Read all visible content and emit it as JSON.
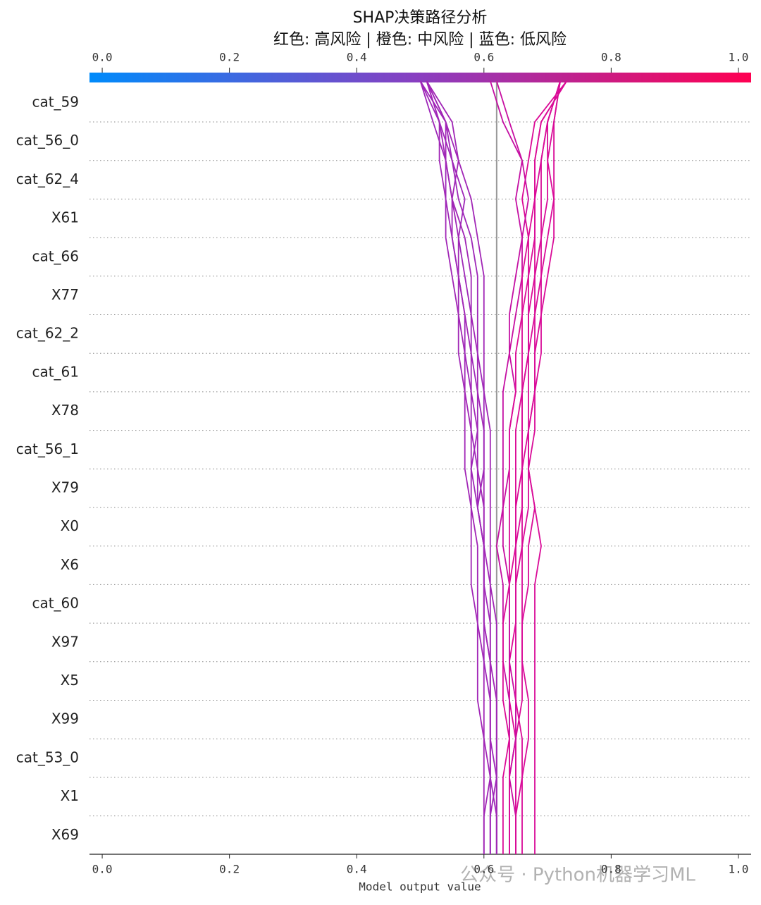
{
  "chart_data": {
    "type": "decision",
    "title": "SHAP决策路径分析",
    "subtitle": "红色: 高风险 | 橙色: 中风险 | 蓝色: 低风险",
    "x_label": "Model output value",
    "watermark": "公众号 · Python机器学习ML",
    "features": [
      "cat_59",
      "cat_56_0",
      "cat_62_4",
      "X61",
      "cat_66",
      "X77",
      "cat_62_2",
      "cat_61",
      "X78",
      "cat_56_1",
      "X79",
      "X0",
      "X6",
      "cat_60",
      "X97",
      "X5",
      "X99",
      "cat_53_0",
      "X1",
      "X69"
    ],
    "xlim": [
      -0.02,
      1.02
    ],
    "xticks": [
      {
        "value": 0,
        "label": "0.0"
      },
      0.2,
      0.4,
      0.6,
      0.8,
      {
        "value": 1,
        "label": "1.0"
      }
    ],
    "base_value": 0.62,
    "base_color": "#999999",
    "colorbar_colors": [
      "#008bfb",
      "#8a3ec0",
      "#ff0052"
    ],
    "lines": [
      {
        "color": "#a126b6",
        "values": [
          0.51,
          0.53,
          0.54,
          0.55,
          0.55,
          0.56,
          0.56,
          0.57,
          0.57,
          0.58,
          0.58,
          0.58,
          0.59,
          0.59,
          0.59,
          0.6,
          0.6,
          0.6,
          0.61,
          0.61,
          0.61
        ]
      },
      {
        "color": "#9e27b8",
        "values": [
          0.5,
          0.54,
          0.55,
          0.57,
          0.56,
          0.57,
          0.58,
          0.58,
          0.59,
          0.59,
          0.58,
          0.59,
          0.6,
          0.6,
          0.6,
          0.61,
          0.61,
          0.61,
          0.61,
          0.62,
          0.62
        ]
      },
      {
        "color": "#a126b6",
        "values": [
          0.51,
          0.55,
          0.56,
          0.55,
          0.57,
          0.58,
          0.58,
          0.59,
          0.59,
          0.6,
          0.6,
          0.6,
          0.6,
          0.61,
          0.61,
          0.61,
          0.62,
          0.62,
          0.62,
          0.62,
          0.62
        ]
      },
      {
        "color": "#a126b6",
        "values": [
          0.51,
          0.53,
          0.53,
          0.54,
          0.54,
          0.55,
          0.56,
          0.56,
          0.57,
          0.57,
          0.57,
          0.58,
          0.58,
          0.58,
          0.59,
          0.59,
          0.59,
          0.6,
          0.6,
          0.6,
          0.6
        ]
      },
      {
        "color": "#9e27b8",
        "values": [
          0.5,
          0.52,
          0.54,
          0.54,
          0.55,
          0.56,
          0.57,
          0.57,
          0.58,
          0.58,
          0.59,
          0.59,
          0.6,
          0.6,
          0.6,
          0.6,
          0.61,
          0.61,
          0.61,
          0.61,
          0.61
        ]
      },
      {
        "color": "#a126b6",
        "values": [
          0.51,
          0.54,
          0.56,
          0.58,
          0.59,
          0.6,
          0.6,
          0.6,
          0.6,
          0.61,
          0.61,
          0.61,
          0.61,
          0.61,
          0.62,
          0.62,
          0.62,
          0.62,
          0.62,
          0.62,
          0.62
        ]
      },
      {
        "color": "#9e27b8",
        "values": [
          0.5,
          0.53,
          0.55,
          0.56,
          0.58,
          0.59,
          0.59,
          0.59,
          0.6,
          0.6,
          0.6,
          0.59,
          0.6,
          0.6,
          0.61,
          0.61,
          0.61,
          0.61,
          0.62,
          0.61,
          0.61
        ]
      },
      {
        "color": "#a126b6",
        "values": [
          0.51,
          0.54,
          0.54,
          0.55,
          0.56,
          0.56,
          0.57,
          0.58,
          0.58,
          0.59,
          0.59,
          0.6,
          0.6,
          0.6,
          0.6,
          0.61,
          0.61,
          0.61,
          0.61,
          0.6,
          0.6
        ]
      },
      {
        "color": "#d90b98",
        "values": [
          0.72,
          0.7,
          0.69,
          0.69,
          0.69,
          0.68,
          0.68,
          0.67,
          0.67,
          0.67,
          0.66,
          0.66,
          0.66,
          0.65,
          0.65,
          0.65,
          0.65,
          0.65,
          0.64,
          0.64,
          0.64
        ]
      },
      {
        "color": "#db0a96",
        "values": [
          0.73,
          0.69,
          0.68,
          0.68,
          0.68,
          0.68,
          0.67,
          0.67,
          0.66,
          0.66,
          0.66,
          0.65,
          0.65,
          0.65,
          0.65,
          0.64,
          0.64,
          0.65,
          0.65,
          0.65,
          0.65
        ]
      },
      {
        "color": "#d90b98",
        "values": [
          0.72,
          0.71,
          0.7,
          0.7,
          0.69,
          0.69,
          0.68,
          0.68,
          0.68,
          0.67,
          0.67,
          0.67,
          0.66,
          0.66,
          0.66,
          0.66,
          0.66,
          0.65,
          0.65,
          0.65,
          0.65
        ]
      },
      {
        "color": "#db0a96",
        "values": [
          0.73,
          0.68,
          0.67,
          0.66,
          0.67,
          0.67,
          0.66,
          0.66,
          0.66,
          0.65,
          0.65,
          0.65,
          0.65,
          0.64,
          0.64,
          0.64,
          0.64,
          0.64,
          0.63,
          0.63,
          0.63
        ]
      },
      {
        "color": "#d90b98",
        "values": [
          0.72,
          0.7,
          0.7,
          0.71,
          0.7,
          0.69,
          0.69,
          0.68,
          0.68,
          0.68,
          0.67,
          0.68,
          0.67,
          0.67,
          0.66,
          0.66,
          0.67,
          0.67,
          0.66,
          0.66,
          0.66
        ]
      },
      {
        "color": "#d90b98",
        "values": [
          0.72,
          0.71,
          0.71,
          0.71,
          0.71,
          0.7,
          0.69,
          0.69,
          0.68,
          0.67,
          0.67,
          0.68,
          0.69,
          0.68,
          0.68,
          0.68,
          0.68,
          0.68,
          0.68,
          0.68,
          0.68
        ]
      },
      {
        "color": "#c40fa3",
        "values": [
          0.61,
          0.63,
          0.66,
          0.65,
          0.66,
          0.65,
          0.64,
          0.64,
          0.63,
          0.63,
          0.63,
          0.63,
          0.62,
          0.63,
          0.63,
          0.63,
          0.64,
          0.64,
          0.64,
          0.64,
          0.64
        ]
      },
      {
        "color": "#c70ea1",
        "values": [
          0.62,
          0.64,
          0.66,
          0.67,
          0.66,
          0.66,
          0.65,
          0.64,
          0.65,
          0.64,
          0.64,
          0.63,
          0.63,
          0.64,
          0.64,
          0.64,
          0.65,
          0.65,
          0.64,
          0.65,
          0.65
        ]
      },
      {
        "color": "#db0a96",
        "values": [
          0.73,
          0.69,
          0.68,
          0.68,
          0.67,
          0.66,
          0.66,
          0.65,
          0.65,
          0.64,
          0.64,
          0.64,
          0.64,
          0.64,
          0.63,
          0.63,
          0.63,
          0.64,
          0.64,
          0.64,
          0.64
        ]
      },
      {
        "color": "#d90b98",
        "values": [
          0.72,
          0.7,
          0.69,
          0.68,
          0.68,
          0.67,
          0.67,
          0.67,
          0.66,
          0.66,
          0.66,
          0.66,
          0.65,
          0.65,
          0.65,
          0.65,
          0.65,
          0.66,
          0.66,
          0.65,
          0.65
        ]
      }
    ]
  }
}
